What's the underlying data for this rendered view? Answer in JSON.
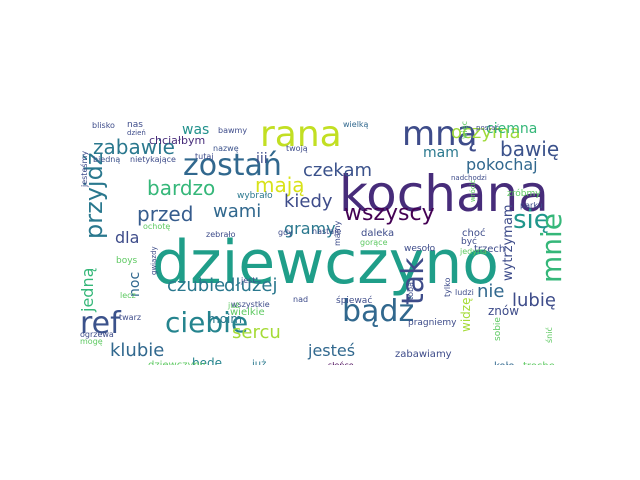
{
  "words": [
    {
      "text": "dziewczyno",
      "color": "#1f9e89"
    },
    {
      "text": "kochana",
      "color": "#472c7a"
    },
    {
      "text": "rana",
      "color": "#c2df23"
    },
    {
      "text": "mną",
      "color": "#3e4c8a"
    },
    {
      "text": "zostań",
      "color": "#31688e"
    },
    {
      "text": "ref",
      "color": "#3b528b"
    },
    {
      "text": "ciebie",
      "color": "#25848e"
    },
    {
      "text": "bądź",
      "color": "#31688e"
    },
    {
      "text": "tak",
      "color": "#3e4c8a"
    },
    {
      "text": "się",
      "color": "#1f968b"
    },
    {
      "text": "mnie",
      "color": "#35b779"
    },
    {
      "text": "oczyma",
      "color": "#9fda3a"
    },
    {
      "text": "zabawie",
      "color": "#2a788e"
    },
    {
      "text": "mają",
      "color": "#d8e219"
    },
    {
      "text": "przed",
      "color": "#365c8d"
    },
    {
      "text": "wami",
      "color": "#31688e"
    },
    {
      "text": "bardzo",
      "color": "#35b779"
    },
    {
      "text": "przyjdź",
      "color": "#2a788e"
    },
    {
      "text": "czekam",
      "color": "#3b528b"
    },
    {
      "text": "pokochaj",
      "color": "#31688e"
    },
    {
      "text": "bawię",
      "color": "#3b528b"
    },
    {
      "text": "wszyscy",
      "color": "#440154"
    },
    {
      "text": "kiedy",
      "color": "#3e4c8a"
    },
    {
      "text": "mam",
      "color": "#2a788e"
    },
    {
      "text": "iii",
      "color": "#3e4c8a"
    },
    {
      "text": "chciałbym",
      "color": "#472c7a"
    },
    {
      "text": "was",
      "color": "#21918c"
    },
    {
      "text": "ciemna",
      "color": "#35b779"
    },
    {
      "text": "nas",
      "color": "#3e4c8a"
    },
    {
      "text": "czubie",
      "color": "#2a788e"
    },
    {
      "text": "dłużej",
      "color": "#2a788e"
    },
    {
      "text": "sercu",
      "color": "#a5db36"
    },
    {
      "text": "klubie",
      "color": "#31688e"
    },
    {
      "text": "jesteś",
      "color": "#31688e"
    },
    {
      "text": "lubię",
      "color": "#3e4c8a"
    },
    {
      "text": "nie",
      "color": "#31688e"
    },
    {
      "text": "gramy",
      "color": "#2a788e"
    },
    {
      "text": "jedną",
      "color": "#35b779"
    },
    {
      "text": "noc",
      "color": "#31688e"
    },
    {
      "text": "dla",
      "color": "#3e4c8a"
    },
    {
      "text": "moim",
      "color": "#2a788e"
    },
    {
      "text": "będę",
      "color": "#25848e"
    },
    {
      "text": "wytrzymam",
      "color": "#3e4c8a"
    },
    {
      "text": "znów",
      "color": "#3e4c8a"
    },
    {
      "text": "widzę",
      "color": "#a5db36"
    },
    {
      "text": "zabawiamy",
      "color": "#3e4c8a"
    },
    {
      "text": "dziewczyny",
      "color": "#5ec962"
    },
    {
      "text": "już",
      "color": "#2a788e"
    },
    {
      "text": "słońce",
      "color": "#440154"
    },
    {
      "text": "koło",
      "color": "#31688e"
    },
    {
      "text": "trochę",
      "color": "#5ec962"
    },
    {
      "text": "wielką",
      "color": "#31688e"
    },
    {
      "text": "bawmy",
      "color": "#3e4c8a"
    },
    {
      "text": "blisko",
      "color": "#3e4c8a"
    },
    {
      "text": "dzień",
      "color": "#3e4c8a"
    },
    {
      "text": "biedną",
      "color": "#3b528b"
    },
    {
      "text": "nietykające",
      "color": "#3e4c8a"
    },
    {
      "text": "tutaj",
      "color": "#3e4c8a"
    },
    {
      "text": "nazwę",
      "color": "#3b528b"
    },
    {
      "text": "twoją",
      "color": "#3e4c8a"
    },
    {
      "text": "wybrało",
      "color": "#2a788e"
    },
    {
      "text": "zebrało",
      "color": "#3e4c8a"
    },
    {
      "text": "ochotę",
      "color": "#5ec962"
    },
    {
      "text": "jesteśmy",
      "color": "#3e4c8a"
    },
    {
      "text": "zróbmy",
      "color": "#5ec962"
    },
    {
      "text": "parku",
      "color": "#3e4c8a"
    },
    {
      "text": "choć",
      "color": "#3e4c8a"
    },
    {
      "text": "trzech",
      "color": "#3e4c8a"
    },
    {
      "text": "wrócić",
      "color": "#5ec962"
    },
    {
      "text": "więc",
      "color": "#5ec962"
    },
    {
      "text": "postać",
      "color": "#3e4c8a"
    },
    {
      "text": "nadchodzi",
      "color": "#3e4c8a"
    },
    {
      "text": "pragniemy",
      "color": "#3e4c8a"
    },
    {
      "text": "daleka",
      "color": "#3e4c8a"
    },
    {
      "text": "gorące",
      "color": "#5ec962"
    },
    {
      "text": "wesoło",
      "color": "#3e4c8a"
    },
    {
      "text": "być",
      "color": "#3e4c8a"
    },
    {
      "text": "jedyna",
      "color": "#5ec962"
    },
    {
      "text": "gdy",
      "color": "#3e4c8a"
    },
    {
      "text": "nastaje",
      "color": "#3e4c8a"
    },
    {
      "text": "mamy",
      "color": "#3e4c8a"
    },
    {
      "text": "jest",
      "color": "#3e4c8a"
    },
    {
      "text": "śpiewać",
      "color": "#3e4c8a"
    },
    {
      "text": "ludzi",
      "color": "#3e4c8a"
    },
    {
      "text": "tylko",
      "color": "#3e4c8a"
    },
    {
      "text": "tobą",
      "color": "#3e4c8a"
    },
    {
      "text": "nad",
      "color": "#3e4c8a"
    },
    {
      "text": "wszystkie",
      "color": "#3e4c8a"
    },
    {
      "text": "wielkie",
      "color": "#5ec962"
    },
    {
      "text": "lecz",
      "color": "#5ec962"
    },
    {
      "text": "boys",
      "color": "#5ec962"
    },
    {
      "text": "twarz",
      "color": "#3e4c8a"
    },
    {
      "text": "ogrzewa",
      "color": "#3e4c8a"
    },
    {
      "text": "gwiazdy",
      "color": "#3e4c8a"
    },
    {
      "text": "mogę",
      "color": "#5ec962"
    },
    {
      "text": "sobie",
      "color": "#5ec962"
    },
    {
      "text": "śnić",
      "color": "#5ec962"
    },
    {
      "text": "już",
      "color": "#5ec962"
    }
  ]
}
